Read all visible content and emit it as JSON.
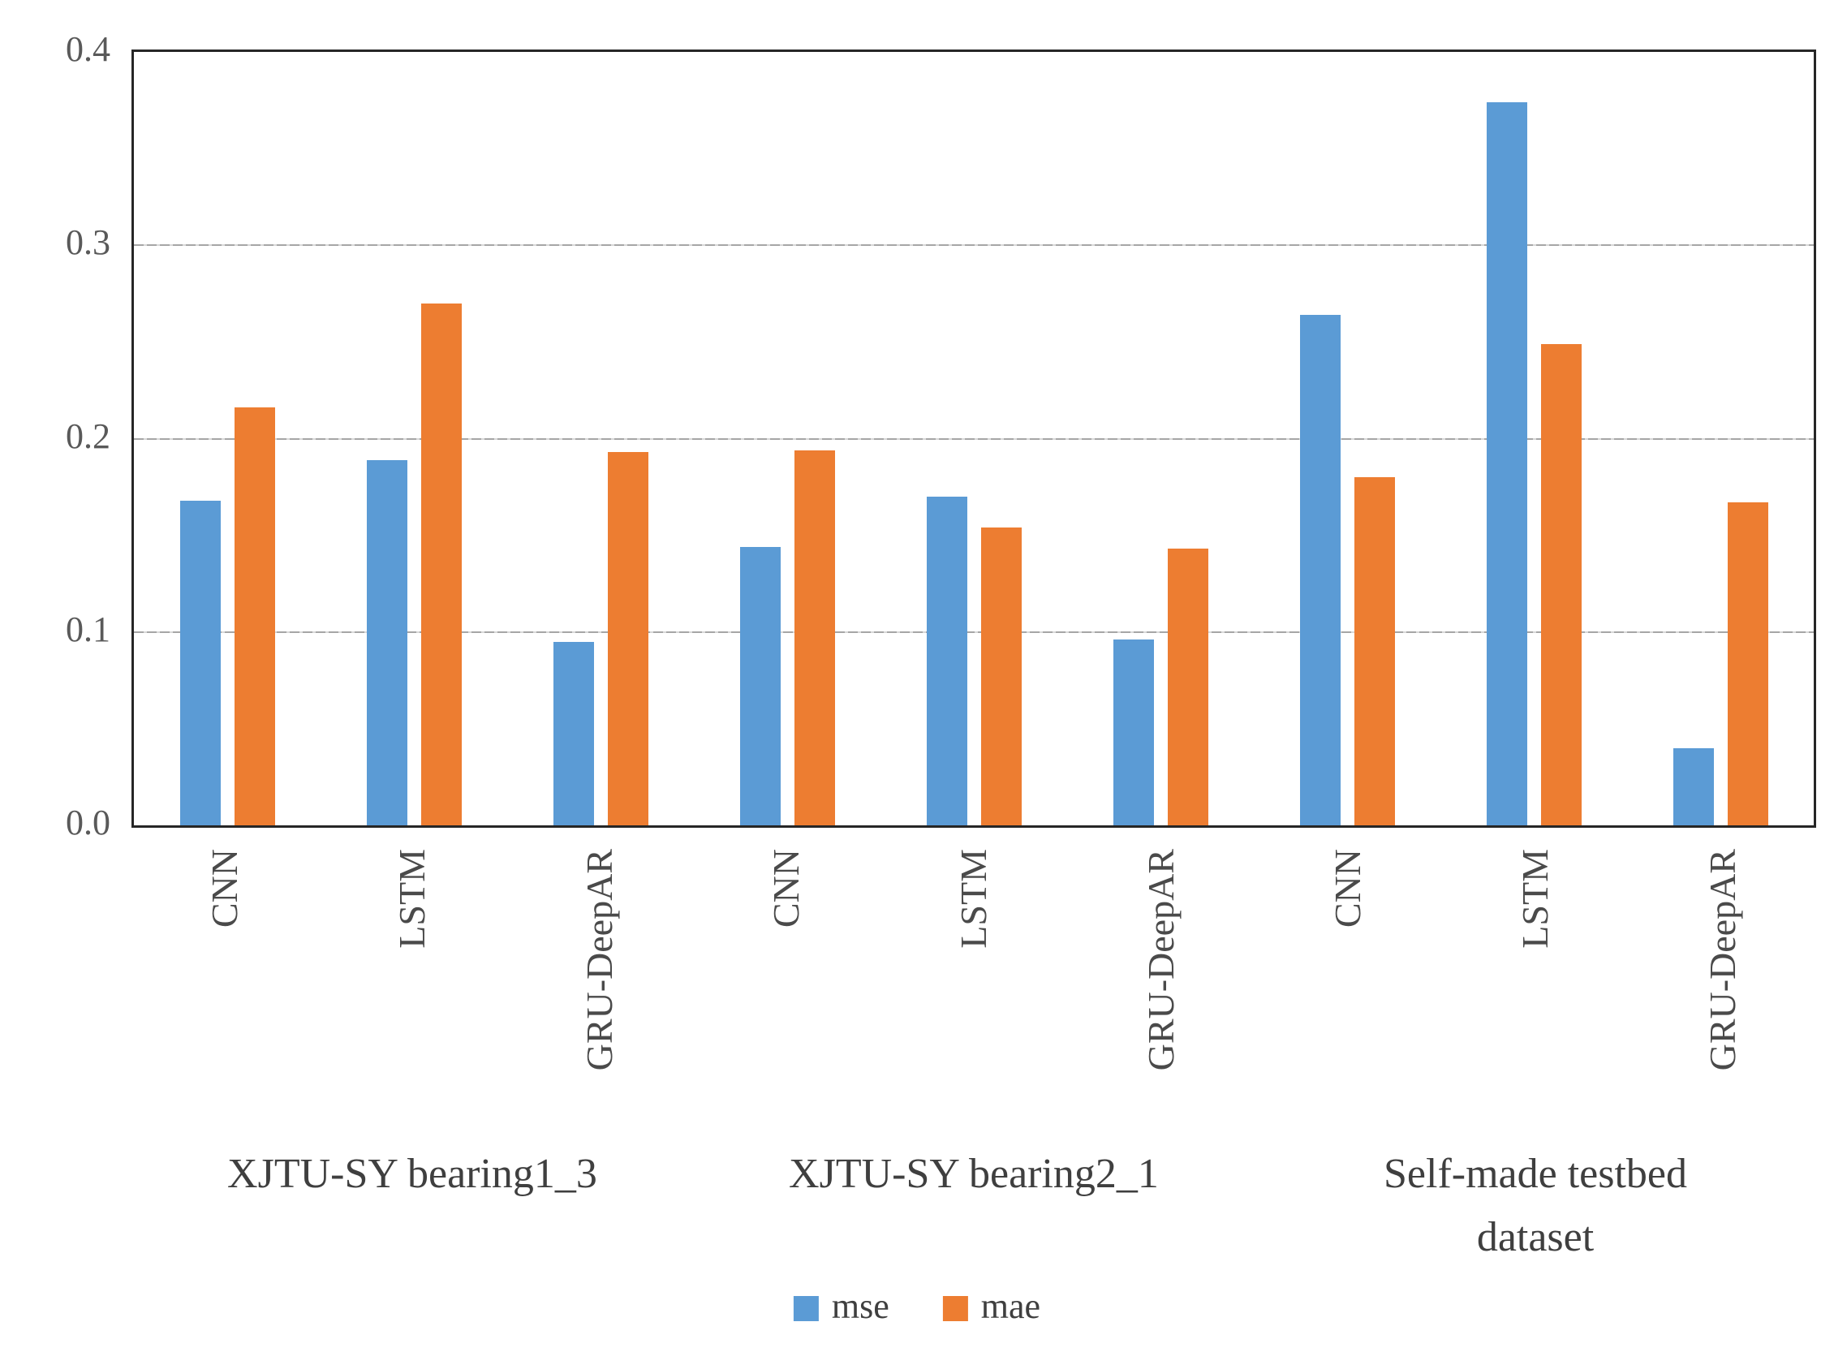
{
  "chart_data": {
    "type": "bar",
    "title": "",
    "xlabel": "",
    "ylabel": "",
    "ylim": [
      0,
      0.4
    ],
    "yticks": [
      "0.0",
      "0.1",
      "0.2",
      "0.3",
      "0.4"
    ],
    "ytick_values": [
      0,
      0.1,
      0.2,
      0.3,
      0.4
    ],
    "gridline_values": [
      0.1,
      0.2,
      0.3
    ],
    "grid": true,
    "legend_position": "bottom-center",
    "categories": [
      "CNN",
      "LSTM",
      "GRU-DeepAR",
      "CNN",
      "LSTM",
      "GRU-DeepAR",
      "CNN",
      "LSTM",
      "GRU-DeepAR"
    ],
    "groups": [
      {
        "label_lines": [
          "XJTU-SY bearing1_3"
        ]
      },
      {
        "label_lines": [
          "XJTU-SY bearing2_1"
        ]
      },
      {
        "label_lines": [
          "Self-made testbed",
          "dataset"
        ]
      }
    ],
    "series": [
      {
        "name": "mse",
        "color": "#5B9BD5",
        "values": [
          0.168,
          0.189,
          0.095,
          0.144,
          0.17,
          0.096,
          0.264,
          0.374,
          0.04
        ]
      },
      {
        "name": "mae",
        "color": "#ED7D31",
        "values": [
          0.216,
          0.27,
          0.193,
          0.194,
          0.154,
          0.143,
          0.18,
          0.249,
          0.167
        ]
      }
    ]
  },
  "style": {
    "axis_border_color": "#262626",
    "gridline_color": "#a6a6a6",
    "tick_text_color": "#595959",
    "label_text_color": "#3f3f3f"
  }
}
